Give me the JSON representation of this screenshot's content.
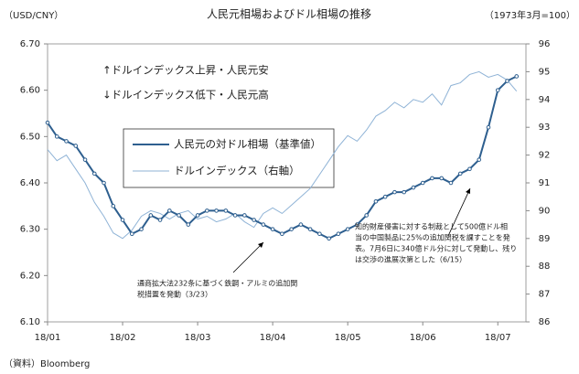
{
  "chart_data": {
    "type": "line",
    "title": "人民元相場およびドル相場の推移",
    "y_label": "（USD/CNY）",
    "y2_label": "（1973年3月=100）",
    "source": "（資料）Bloomberg",
    "annotations": [
      "↑ドルインデックス上昇・人民元安",
      "↓ドルインデックス低下・人民元高"
    ],
    "notes": [
      [
        "通商拡大法232条に基づく鉄鋼・アルミの追加関",
        "税措置を発動（3/23）"
      ],
      [
        "知的財産侵害に対する制裁として500億ドル相",
        "当の中国製品に25%の追加関税を課すことを発",
        "表。7月6日に340億ドル分に対して発動し、残り",
        "は交渉の進展次第とした（6/15）"
      ]
    ],
    "categories": [
      "18/01",
      null,
      null,
      null,
      null,
      null,
      null,
      null,
      "18/02",
      null,
      null,
      null,
      null,
      null,
      null,
      null,
      "18/03",
      null,
      null,
      null,
      null,
      null,
      null,
      null,
      "18/04",
      null,
      null,
      null,
      null,
      null,
      null,
      null,
      "18/05",
      null,
      null,
      null,
      null,
      null,
      null,
      null,
      "18/06",
      null,
      null,
      null,
      null,
      null,
      null,
      null,
      "18/07",
      null,
      null
    ],
    "series": [
      {
        "name": "人民元の対ドル相場（基準値）",
        "color": "#2e5f8f",
        "values": [
          6.53,
          6.5,
          6.49,
          6.48,
          6.45,
          6.42,
          6.4,
          6.35,
          6.32,
          6.29,
          6.3,
          6.33,
          6.32,
          6.34,
          6.33,
          6.31,
          6.33,
          6.34,
          6.34,
          6.34,
          6.33,
          6.33,
          6.32,
          6.31,
          6.3,
          6.29,
          6.3,
          6.31,
          6.3,
          6.29,
          6.28,
          6.29,
          6.3,
          6.31,
          6.33,
          6.36,
          6.37,
          6.38,
          6.38,
          6.39,
          6.4,
          6.41,
          6.41,
          6.4,
          6.42,
          6.43,
          6.45,
          6.52,
          6.6,
          6.62,
          6.63
        ]
      },
      {
        "name": "ドルインデックス（右軸）",
        "color": "#8fb3d6",
        "axis": "y2",
        "values": [
          92.2,
          91.8,
          92.0,
          91.5,
          91.0,
          90.3,
          89.8,
          89.2,
          89.0,
          89.3,
          89.8,
          90.0,
          89.9,
          89.7,
          89.9,
          90.0,
          89.7,
          89.8,
          89.6,
          89.7,
          89.9,
          89.6,
          89.4,
          89.9,
          90.1,
          89.9,
          90.2,
          90.5,
          90.8,
          91.3,
          91.8,
          92.3,
          92.7,
          92.5,
          92.9,
          93.4,
          93.6,
          93.9,
          93.7,
          94.0,
          93.9,
          94.2,
          93.8,
          94.5,
          94.6,
          94.9,
          95.0,
          94.8,
          94.9,
          94.7,
          94.3
        ]
      }
    ],
    "ylim": [
      6.1,
      6.7
    ],
    "yticks": [
      {
        "value": 6.1,
        "label": "6.10"
      },
      {
        "value": 6.2,
        "label": "6.20"
      },
      {
        "value": 6.3,
        "label": "6.30"
      },
      {
        "value": 6.4,
        "label": "6.40"
      },
      {
        "value": 6.5,
        "label": "6.50"
      },
      {
        "value": 6.6,
        "label": "6.60"
      },
      {
        "value": 6.7,
        "label": "6.70"
      }
    ],
    "y2lim": [
      86,
      96
    ],
    "y2ticks": [
      86,
      87,
      88,
      89,
      90,
      91,
      92,
      93,
      94,
      95,
      96
    ]
  }
}
